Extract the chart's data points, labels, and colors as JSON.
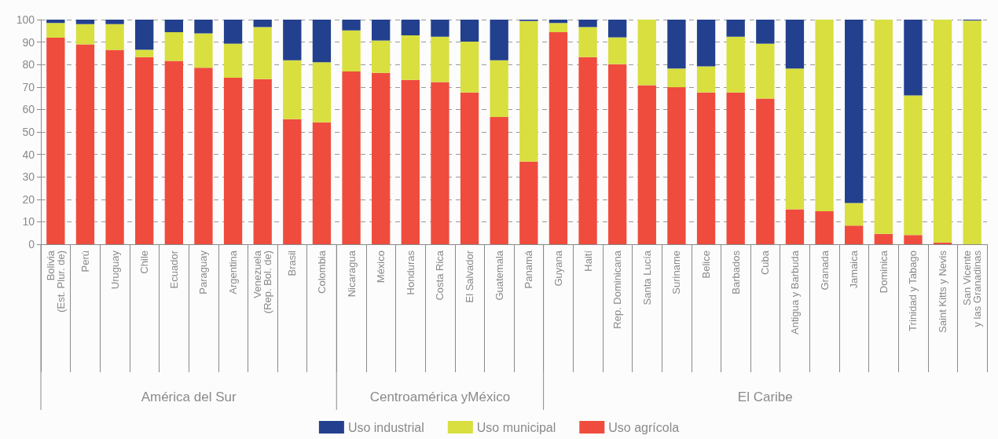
{
  "chart_data": {
    "type": "bar",
    "stacked": true,
    "categories": [
      "Bolivia\n(Est. Plur. de)",
      "Perú",
      "Uruguay",
      "Chile",
      "Ecuador",
      "Paraguay",
      "Argentina",
      "Venezuela\n(Rep. Bol. de)",
      "Brasil",
      "Colombia",
      "Nicaragua",
      "México",
      "Honduras",
      "Costa Rica",
      "El Salvador",
      "Guatemala",
      "Panamá",
      "Guyana",
      "Haití",
      "Rep. Dominicana",
      "Santa Lucía",
      "Suriname",
      "Belice",
      "Barbados",
      "Cuba",
      "Antigua y Barbuda",
      "Granada",
      "Jamaica",
      "Dominica",
      "Trinidad y Tabago",
      "Saint Kitts y Nevis",
      "San Vicente\ny las Granadinas"
    ],
    "series": [
      {
        "name": "Uso agrícola",
        "color": "#ef4c3e",
        "values": [
          92,
          89,
          86.5,
          83.3,
          81.6,
          78.6,
          74.1,
          73.5,
          55.7,
          54.3,
          76.9,
          76.3,
          73.2,
          72.2,
          67.6,
          56.6,
          36.8,
          94.4,
          83.3,
          80.2,
          70.8,
          69.9,
          67.6,
          67.6,
          64.9,
          15.6,
          14.7,
          8.3,
          4.6,
          4.1,
          0.8,
          0
        ]
      },
      {
        "name": "Uso municipal",
        "color": "#d8df3f",
        "values": [
          6.5,
          9,
          11.5,
          3.3,
          12.8,
          15.3,
          15.2,
          23.2,
          26.2,
          26.7,
          18.3,
          14.4,
          19.8,
          20.2,
          22.6,
          25.3,
          62.6,
          4.1,
          13.4,
          11.9,
          29.2,
          8.3,
          11.6,
          24.8,
          24.4,
          62.6,
          85.3,
          10.1,
          95.4,
          62.2,
          99.2,
          99.6
        ]
      },
      {
        "name": "Uso industrial",
        "color": "#23408e",
        "values": [
          1.5,
          2,
          2,
          13.4,
          5.6,
          6.1,
          10.7,
          3.3,
          18.1,
          19,
          4.8,
          9.3,
          7,
          7.6,
          9.8,
          18.1,
          0.6,
          1.5,
          3.3,
          7.9,
          0,
          21.8,
          20.8,
          7.6,
          10.7,
          21.8,
          0,
          81.6,
          0,
          33.7,
          0,
          0.4
        ]
      }
    ],
    "ylim": [
      0,
      100
    ],
    "yticks": [
      0,
      10,
      20,
      30,
      40,
      50,
      60,
      70,
      80,
      90,
      100
    ],
    "grid": "y",
    "legend": "bottom",
    "annotations": [
      "América del Sur",
      "Centroamérica yMéxico",
      "El Caribe"
    ]
  }
}
